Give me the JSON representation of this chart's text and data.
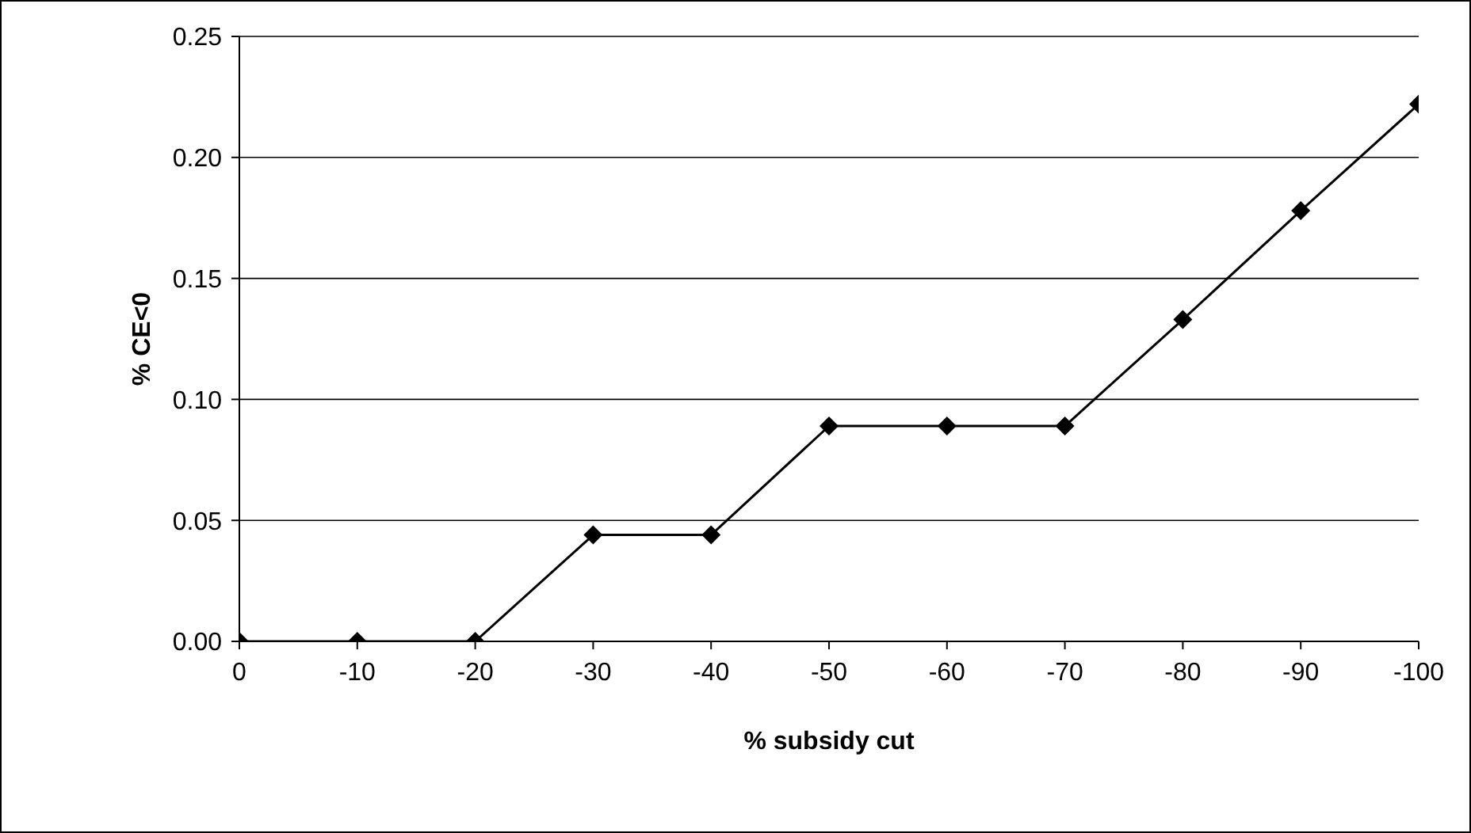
{
  "chart_data": {
    "type": "line",
    "xlabel": "% subsidy cut",
    "ylabel": "% CE<0",
    "x": [
      0,
      -10,
      -20,
      -30,
      -40,
      -50,
      -60,
      -70,
      -80,
      -90,
      -100
    ],
    "values": [
      0,
      0,
      0,
      0.044,
      0.044,
      0.089,
      0.089,
      0.089,
      0.133,
      0.178,
      0.222
    ],
    "color": "#000000",
    "xlim": [
      0,
      -100
    ],
    "xticks": [
      0,
      -10,
      -20,
      -30,
      -40,
      -50,
      -60,
      -70,
      -80,
      -90,
      -100
    ],
    "ylim": [
      0,
      0.25
    ],
    "yticks": [
      {
        "value": 0,
        "label": "0.00"
      },
      {
        "value": 0.05,
        "label": "0.05"
      },
      {
        "value": 0.1,
        "label": "0.10"
      },
      {
        "value": 0.15,
        "label": "0.15"
      },
      {
        "value": 0.2,
        "label": "0.20"
      },
      {
        "value": 0.25,
        "label": "0.25"
      }
    ],
    "grid": "y",
    "marker": "diamond",
    "line_style": "solid"
  }
}
